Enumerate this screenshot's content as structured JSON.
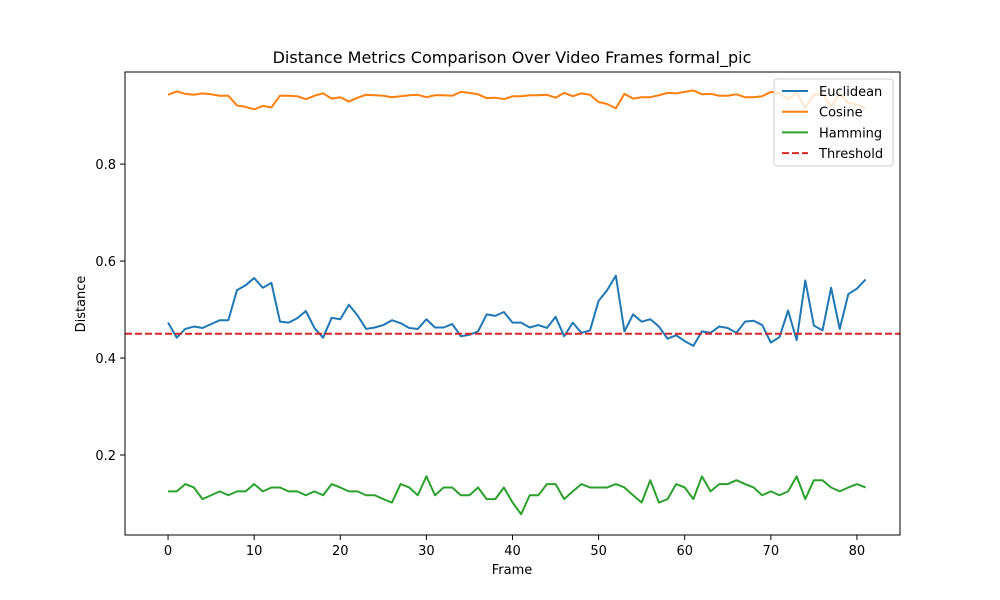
{
  "chart_data": {
    "type": "line",
    "title": "Distance Metrics Comparison Over Video Frames formal_pic",
    "xlabel": "Frame",
    "ylabel": "Distance",
    "xlim": [
      -5,
      85
    ],
    "ylim": [
      0.035,
      0.99
    ],
    "xticks": [
      0,
      10,
      20,
      30,
      40,
      50,
      60,
      70,
      80
    ],
    "yticks": [
      0.2,
      0.4,
      0.6,
      0.8
    ],
    "grid": false,
    "legend_position": "top-right",
    "x": [
      0,
      1,
      2,
      3,
      4,
      5,
      6,
      7,
      8,
      9,
      10,
      11,
      12,
      13,
      14,
      15,
      16,
      17,
      18,
      19,
      20,
      21,
      22,
      23,
      24,
      25,
      26,
      27,
      28,
      29,
      30,
      31,
      32,
      33,
      34,
      35,
      36,
      37,
      38,
      39,
      40,
      41,
      42,
      43,
      44,
      45,
      46,
      47,
      48,
      49,
      50,
      51,
      52,
      53,
      54,
      55,
      56,
      57,
      58,
      59,
      60,
      61,
      62,
      63,
      64,
      65,
      66,
      67,
      68,
      69,
      70,
      71,
      72,
      73,
      74,
      75,
      76,
      77,
      78,
      79,
      80,
      81
    ],
    "series": [
      {
        "name": "Euclidean",
        "color": "#1f77b4",
        "values": [
          0.473,
          0.442,
          0.46,
          0.465,
          0.462,
          0.47,
          0.478,
          0.478,
          0.54,
          0.55,
          0.565,
          0.545,
          0.555,
          0.475,
          0.473,
          0.482,
          0.497,
          0.462,
          0.442,
          0.483,
          0.48,
          0.51,
          0.488,
          0.46,
          0.463,
          0.468,
          0.478,
          0.472,
          0.462,
          0.46,
          0.48,
          0.463,
          0.463,
          0.47,
          0.445,
          0.448,
          0.455,
          0.49,
          0.487,
          0.495,
          0.473,
          0.473,
          0.463,
          0.468,
          0.462,
          0.485,
          0.445,
          0.473,
          0.452,
          0.457,
          0.518,
          0.54,
          0.57,
          0.455,
          0.49,
          0.475,
          0.48,
          0.465,
          0.44,
          0.447,
          0.435,
          0.425,
          0.455,
          0.452,
          0.465,
          0.462,
          0.452,
          0.475,
          0.477,
          0.468,
          0.432,
          0.443,
          0.498,
          0.437,
          0.56,
          0.467,
          0.457,
          0.545,
          0.46,
          0.532,
          0.543,
          0.562
        ]
      },
      {
        "name": "Cosine",
        "color": "#ff7f0e",
        "values": [
          0.943,
          0.95,
          0.945,
          0.943,
          0.946,
          0.944,
          0.941,
          0.941,
          0.921,
          0.918,
          0.913,
          0.92,
          0.917,
          0.941,
          0.941,
          0.94,
          0.934,
          0.941,
          0.946,
          0.935,
          0.938,
          0.929,
          0.937,
          0.943,
          0.942,
          0.941,
          0.938,
          0.94,
          0.942,
          0.943,
          0.938,
          0.942,
          0.942,
          0.941,
          0.949,
          0.947,
          0.944,
          0.936,
          0.937,
          0.934,
          0.94,
          0.94,
          0.942,
          0.942,
          0.943,
          0.937,
          0.947,
          0.94,
          0.946,
          0.943,
          0.928,
          0.924,
          0.915,
          0.945,
          0.935,
          0.938,
          0.938,
          0.942,
          0.947,
          0.946,
          0.949,
          0.952,
          0.944,
          0.945,
          0.941,
          0.941,
          0.944,
          0.938,
          0.938,
          0.94,
          0.949,
          0.946,
          0.934,
          0.948,
          0.916,
          0.943,
          0.945,
          0.919,
          0.945,
          0.926,
          0.923,
          0.915
        ]
      },
      {
        "name": "Hamming",
        "color": "#2ca02c",
        "values": [
          0.125,
          0.125,
          0.14,
          0.133,
          0.109,
          0.117,
          0.125,
          0.117,
          0.125,
          0.125,
          0.14,
          0.125,
          0.133,
          0.133,
          0.125,
          0.125,
          0.117,
          0.125,
          0.117,
          0.14,
          0.133,
          0.125,
          0.125,
          0.117,
          0.117,
          0.109,
          0.102,
          0.14,
          0.133,
          0.117,
          0.156,
          0.117,
          0.133,
          0.133,
          0.117,
          0.117,
          0.133,
          0.109,
          0.109,
          0.133,
          0.102,
          0.078,
          0.117,
          0.117,
          0.14,
          0.14,
          0.109,
          0.125,
          0.14,
          0.133,
          0.133,
          0.133,
          0.14,
          0.133,
          0.117,
          0.102,
          0.148,
          0.102,
          0.109,
          0.14,
          0.133,
          0.109,
          0.156,
          0.125,
          0.14,
          0.14,
          0.148,
          0.14,
          0.133,
          0.117,
          0.125,
          0.117,
          0.125,
          0.156,
          0.109,
          0.148,
          0.148,
          0.133,
          0.125,
          0.133,
          0.14,
          0.133
        ]
      }
    ],
    "threshold": {
      "name": "Threshold",
      "value": 0.45,
      "color": "#d62728",
      "style": "dashed"
    }
  }
}
